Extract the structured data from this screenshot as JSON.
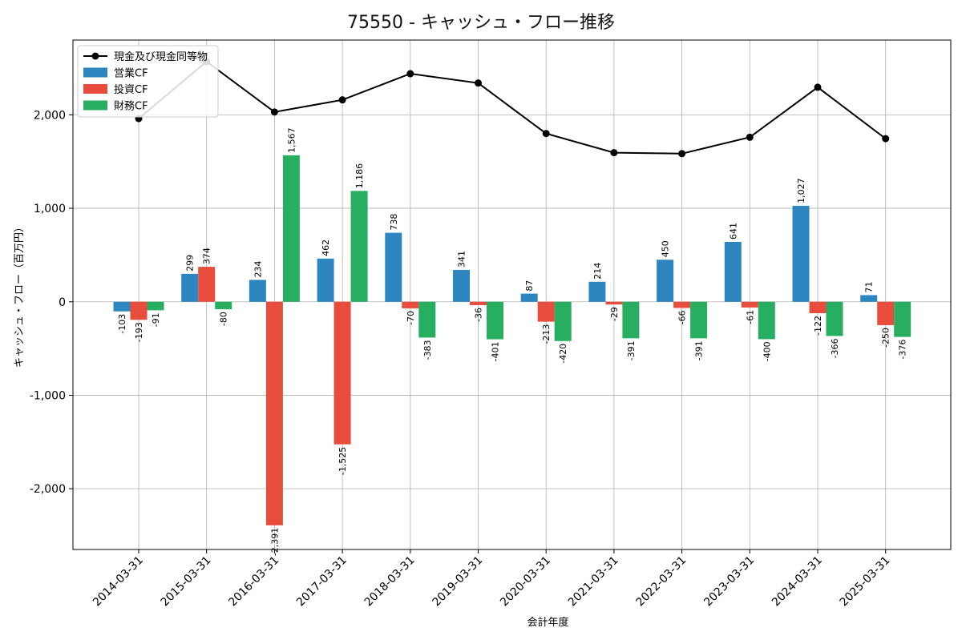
{
  "chart_data": {
    "type": "bar",
    "title": "75550 - キャッシュ・フロー推移",
    "xlabel": "会計年度",
    "ylabel": "キャッシュ・フロー（百万円）",
    "ylim": [
      -2650,
      2800
    ],
    "yticks": [
      2000,
      1000,
      0,
      -1000,
      -2000
    ],
    "ytick_labels": [
      "2,000",
      "1,000",
      "0",
      "-1,000",
      "-2,000"
    ],
    "grid": true,
    "legend_position": "top-left",
    "categories": [
      "2014-03-31",
      "2015-03-31",
      "2016-03-31",
      "2017-03-31",
      "2018-03-31",
      "2019-03-31",
      "2020-03-31",
      "2021-03-31",
      "2022-03-31",
      "2023-03-31",
      "2024-03-31",
      "2025-03-31"
    ],
    "series": [
      {
        "name": "営業CF",
        "kind": "bar",
        "color": "#2e86c1",
        "values": [
          -103,
          299,
          234,
          462,
          738,
          341,
          87,
          214,
          450,
          641,
          1027,
          71
        ],
        "labels": [
          "-103",
          "299",
          "234",
          "462",
          "738",
          "341",
          "87",
          "214",
          "450",
          "641",
          "1,027",
          "71"
        ]
      },
      {
        "name": "投資CF",
        "kind": "bar",
        "color": "#e74c3c",
        "values": [
          -193,
          374,
          -2391,
          -1525,
          -70,
          -36,
          -213,
          -29,
          -66,
          -61,
          -122,
          -250
        ],
        "labels": [
          "-193",
          "374",
          "-2,391",
          "-1,525",
          "-70",
          "-36",
          "-213",
          "-29",
          "-66",
          "-61",
          "-122",
          "-250"
        ]
      },
      {
        "name": "財務CF",
        "kind": "bar",
        "color": "#27ae60",
        "values": [
          -91,
          -80,
          1567,
          1186,
          -383,
          -401,
          -420,
          -391,
          -391,
          -400,
          -366,
          -376
        ],
        "labels": [
          "-91",
          "-80",
          "1,567",
          "1,186",
          "-383",
          "-401",
          "-420",
          "-391",
          "-391",
          "-400",
          "-366",
          "-376"
        ]
      },
      {
        "name": "現金及び現金同等物",
        "kind": "line",
        "color": "#000000",
        "values": [
          1960,
          2570,
          2030,
          2160,
          2440,
          2340,
          1800,
          1595,
          1585,
          1760,
          2295,
          1745
        ]
      }
    ]
  }
}
